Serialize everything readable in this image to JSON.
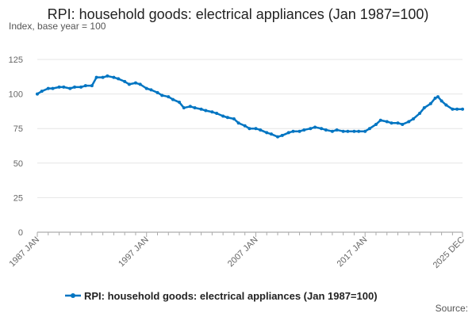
{
  "chart_data": {
    "type": "line",
    "title": "RPI: household goods: electrical appliances (Jan 1987=100)",
    "subtitle": "Index, base year = 100",
    "ylim": [
      0,
      125
    ],
    "y_ticks": [
      0,
      25,
      50,
      75,
      100,
      125
    ],
    "x_range": [
      "1987-01",
      "2025-12"
    ],
    "x_ticks": [
      "1987 JAN",
      "1997 JAN",
      "2007 JAN",
      "2017 JAN",
      "2025 DEC"
    ],
    "grid": "horizontal",
    "legend_position": "bottom",
    "line_color": "#0075c2",
    "series": [
      {
        "name": "RPI: household goods: electrical appliances (Jan 1987=100)",
        "points": [
          [
            "1987-01",
            100
          ],
          [
            "1987-06",
            102
          ],
          [
            "1988-01",
            104
          ],
          [
            "1988-06",
            104
          ],
          [
            "1989-01",
            105
          ],
          [
            "1989-06",
            105
          ],
          [
            "1990-01",
            104
          ],
          [
            "1990-06",
            105
          ],
          [
            "1991-01",
            105
          ],
          [
            "1991-06",
            106
          ],
          [
            "1992-01",
            106
          ],
          [
            "1992-06",
            112
          ],
          [
            "1993-01",
            112
          ],
          [
            "1993-06",
            113
          ],
          [
            "1994-01",
            112
          ],
          [
            "1994-06",
            111
          ],
          [
            "1995-01",
            109
          ],
          [
            "1995-06",
            107
          ],
          [
            "1996-01",
            108
          ],
          [
            "1996-06",
            107
          ],
          [
            "1997-01",
            104
          ],
          [
            "1997-06",
            103
          ],
          [
            "1998-01",
            101
          ],
          [
            "1998-06",
            99
          ],
          [
            "1999-01",
            98
          ],
          [
            "1999-06",
            96
          ],
          [
            "2000-01",
            94
          ],
          [
            "2000-06",
            90
          ],
          [
            "2001-01",
            91
          ],
          [
            "2001-06",
            90
          ],
          [
            "2002-01",
            89
          ],
          [
            "2002-06",
            88
          ],
          [
            "2003-01",
            87
          ],
          [
            "2003-06",
            86
          ],
          [
            "2004-01",
            84
          ],
          [
            "2004-06",
            83
          ],
          [
            "2005-01",
            82
          ],
          [
            "2005-06",
            79
          ],
          [
            "2006-01",
            77
          ],
          [
            "2006-06",
            75
          ],
          [
            "2007-01",
            75
          ],
          [
            "2007-06",
            74
          ],
          [
            "2008-01",
            72
          ],
          [
            "2008-06",
            71
          ],
          [
            "2009-01",
            69
          ],
          [
            "2009-06",
            70
          ],
          [
            "2010-01",
            72
          ],
          [
            "2010-06",
            73
          ],
          [
            "2011-01",
            73
          ],
          [
            "2011-06",
            74
          ],
          [
            "2012-01",
            75
          ],
          [
            "2012-06",
            76
          ],
          [
            "2013-01",
            75
          ],
          [
            "2013-06",
            74
          ],
          [
            "2014-01",
            73
          ],
          [
            "2014-06",
            74
          ],
          [
            "2015-01",
            73
          ],
          [
            "2015-06",
            73
          ],
          [
            "2016-01",
            73
          ],
          [
            "2016-06",
            73
          ],
          [
            "2017-01",
            73
          ],
          [
            "2017-06",
            75
          ],
          [
            "2018-01",
            78
          ],
          [
            "2018-06",
            81
          ],
          [
            "2019-01",
            80
          ],
          [
            "2019-06",
            79
          ],
          [
            "2020-01",
            79
          ],
          [
            "2020-06",
            78
          ],
          [
            "2021-01",
            80
          ],
          [
            "2021-06",
            82
          ],
          [
            "2022-01",
            86
          ],
          [
            "2022-06",
            90
          ],
          [
            "2023-01",
            93
          ],
          [
            "2023-06",
            97
          ],
          [
            "2023-09",
            98
          ],
          [
            "2024-01",
            95
          ],
          [
            "2024-06",
            92
          ],
          [
            "2025-01",
            89
          ],
          [
            "2025-06",
            89
          ],
          [
            "2025-12",
            89
          ]
        ]
      }
    ]
  },
  "legend": {
    "label": "RPI: household goods: electrical appliances (Jan 1987=100)"
  },
  "footer": {
    "source_label": "Source:"
  }
}
